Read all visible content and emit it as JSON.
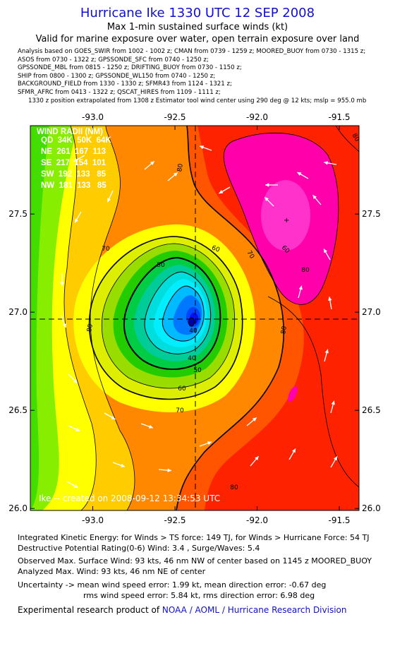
{
  "header": {
    "title": "Hurricane Ike    1330 UTC 12 SEP 2008",
    "subtitle1": "Max 1-min sustained surface winds (kt)",
    "subtitle2": "Valid for marine exposure over water, open terrain exposure over land"
  },
  "sources": [
    "Analysis based on  GOES_SWIR from 1002 - 1002 z;  CMAN from 0739 - 1259 z;  MOORED_BUOY from 0730 - 1315 z;",
    "ASOS from 0730 - 1322 z;  GPSSONDE_SFC from 0740 - 1250 z;",
    "GPSSONDE_MBL from 0815 - 1250 z;  DRIFTING_BUOY from 0730 - 1150 z;",
    "SHIP from 0800 - 1300 z;  GPSSONDE_WL150 from 0740 - 1250 z;",
    "BACKGROUND_FIELD from 1330 - 1330 z;  SFMR43 from 1124 - 1321 z;",
    "SFMR_AFRC from 0413 - 1322 z;  QSCAT_HIRES from 1109 - 1111 z;"
  ],
  "position_note": "1330 z position extrapolated from 1308 z Estimator tool wind center using 290 deg @ 12 kts;  mslp = 955.0 mb",
  "wind_radii": {
    "header": "WIND RADII (NM)",
    "columns": "QD  34K  50K  64K",
    "rows": [
      "NE  261  167  113",
      "SE  217  154  101",
      "SW  192  133   85",
      "NW  181  133   85"
    ]
  },
  "created": "Ike --  created on 2008-09-12 13:34:53 UTC",
  "contour_labels": [
    "80",
    "80",
    "80",
    "80",
    "70",
    "70",
    "70",
    "60",
    "60",
    "50",
    "50",
    "40",
    "40",
    "60",
    "80",
    "80"
  ],
  "chart_data": {
    "type": "contour",
    "x_ticks": [
      -93.0,
      -92.5,
      -92.0,
      -91.5
    ],
    "x_tick_labels": [
      "-93.0",
      "-92.5",
      "-92.0",
      "-91.5"
    ],
    "y_ticks": [
      26.0,
      26.5,
      27.0,
      27.5
    ],
    "y_tick_labels": [
      "26.0",
      "26.5",
      "27.0",
      "27.5"
    ],
    "xlim": [
      -93.38,
      -91.38
    ],
    "ylim": [
      25.99,
      27.95
    ],
    "center": {
      "lon": -92.4,
      "lat": 26.95
    },
    "contour_levels_kt": [
      20,
      30,
      40,
      50,
      60,
      70,
      80,
      90
    ],
    "fill_colors": {
      "low": "#ffff00",
      "mid": "#ff8800",
      "high": "#ff2200",
      "max": "#ff00aa",
      "core": "#0000ff"
    },
    "max_wind_kt": 93
  },
  "footer": {
    "ike": "Integrated Kinetic Energy:  for Winds > TS force: 149 TJ,  for Winds > Hurricane Force: 54 TJ",
    "dpr": "Destructive Potential Rating(0-6)   Wind: 3.4 , Surge/Waves: 5.4",
    "obs": "Observed Max. Surface Wind: 93 kts, 46 nm NW of center based on 1145 z MOORED_BUOY",
    "analyzed": "Analyzed Max. Wind: 93 kts, 46 nm NE of center",
    "unc1": "Uncertainty -> mean wind speed error: 1.99 kt,   mean direction error:  -0.67 deg",
    "unc2": "rms wind speed error: 5.84 kt,   rms direction error: 6.98 deg",
    "credit_prefix": "Experimental research product of ",
    "credit_org": "NOAA / AOML / Hurricane Research Division"
  }
}
